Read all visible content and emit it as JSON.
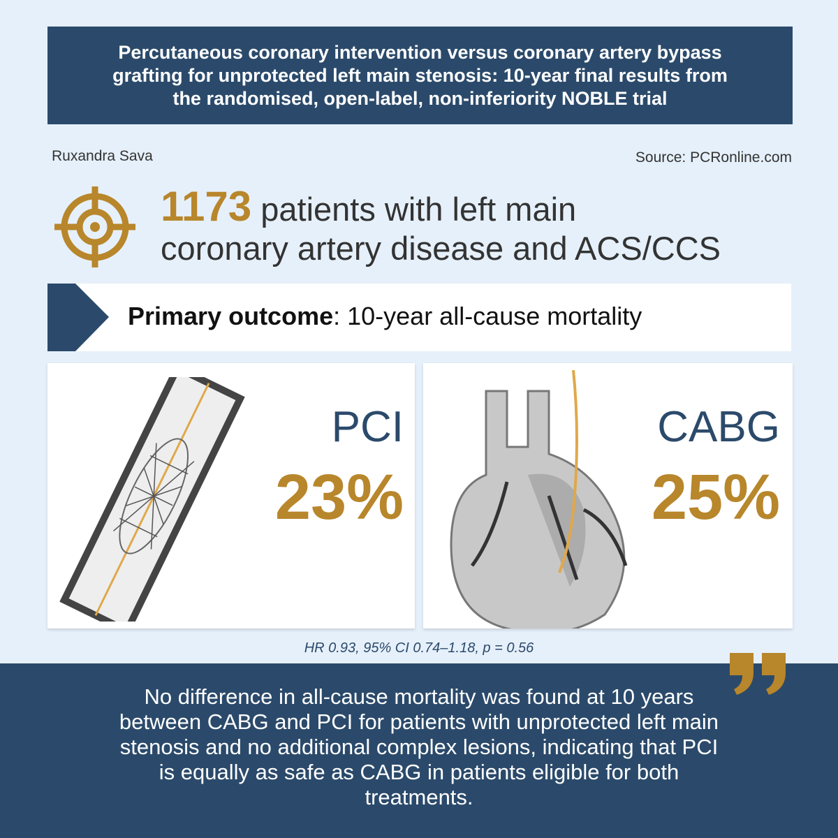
{
  "header": {
    "title_lines": [
      "Percutaneous coronary intervention versus coronary artery bypass",
      "grafting for unprotected left main stenosis: 10-year final results from",
      "the randomised, open-label, non-inferiority NOBLE trial"
    ]
  },
  "author": "Ruxandra Sava",
  "source": "Source: PCRonline.com",
  "population": {
    "count": "1173",
    "lines": [
      "patients with left main",
      "coronary artery disease and ACS/CCS"
    ]
  },
  "outcome": {
    "label": "Primary outcome",
    "text": ": 10-year all-cause mortality"
  },
  "arms": [
    {
      "name": "PCI",
      "result": "23%"
    },
    {
      "name": "CABG",
      "result": "25%"
    }
  ],
  "stats": "HR 0.93, 95% CI 0.74–1.18,  p = 0.56",
  "conclusion": {
    "lines": [
      "No difference in all-cause mortality was found at 10 years",
      "between CABG and PCI for patients with unprotected left main",
      "stenosis and no additional complex lesions, indicating that PCI",
      "is equally as safe as CABG in patients eligible for both",
      "treatments."
    ]
  }
}
